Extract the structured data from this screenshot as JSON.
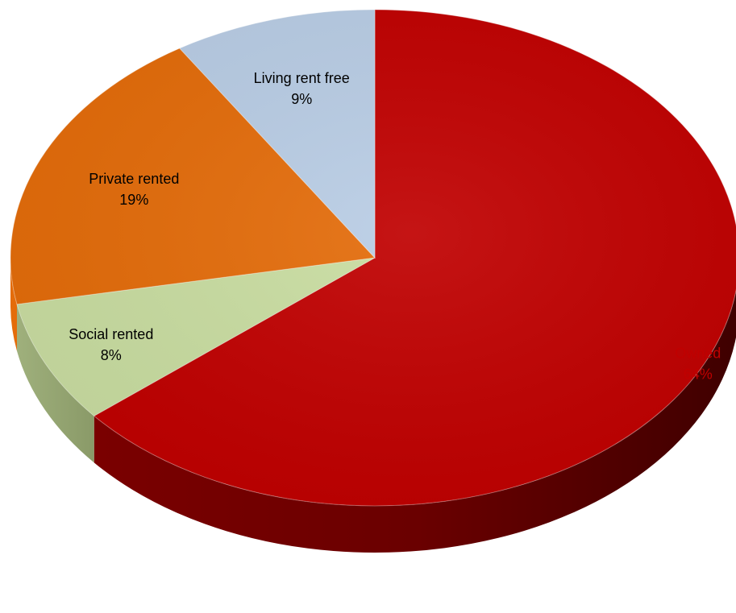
{
  "chart_data": {
    "type": "pie",
    "title": "",
    "slices": [
      {
        "name": "Owned",
        "value": 64,
        "label": "64%",
        "color": "#c00000",
        "text_color": "#c00000"
      },
      {
        "name": "Social rented",
        "value": 8,
        "label": "8%",
        "color": "#c9dda1",
        "text_color": "#000000"
      },
      {
        "name": "Private rented",
        "value": 19,
        "label": "19%",
        "color": "#e46c0a",
        "text_color": "#000000"
      },
      {
        "name": "Living rent free",
        "value": 9,
        "label": "9%",
        "color": "#b9cde5",
        "text_color": "#000000"
      }
    ],
    "legend": "none",
    "style": "3d"
  }
}
